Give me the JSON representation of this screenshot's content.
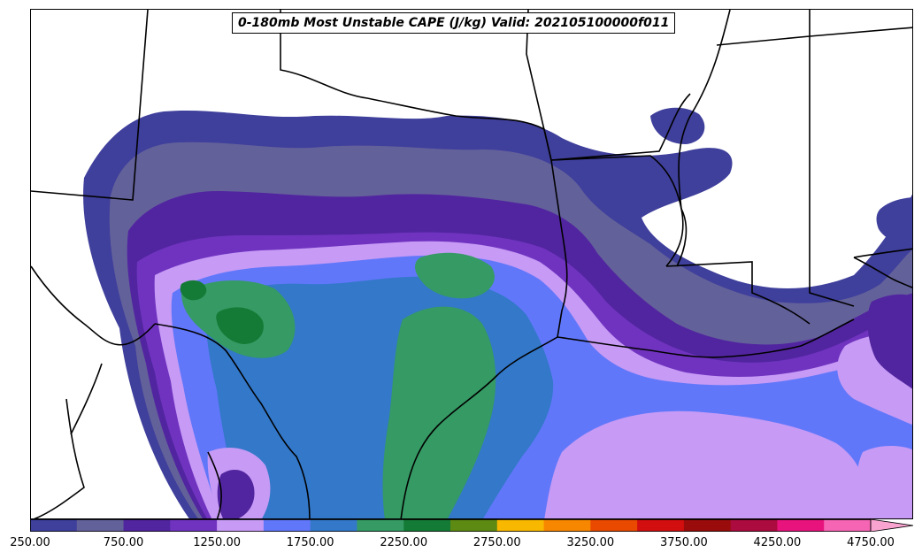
{
  "title": "0-180mb Most Unstable CAPE (J/kg) Valid: 202105100000f011",
  "colorbar": {
    "min": 250,
    "step": 250,
    "colors": [
      "#3f3f9c",
      "#63619a",
      "#5225a0",
      "#7033c0",
      "#c69af5",
      "#6177fa",
      "#3378c9",
      "#359a64",
      "#147b36",
      "#5d8a12",
      "#f8b800",
      "#f88700",
      "#ea4a00",
      "#d30e0e",
      "#9a0b0b",
      "#ab0b3e",
      "#e8137d",
      "#f565b3"
    ],
    "extend_color": "#f9a3d0",
    "tick_labels": [
      "250.00",
      "750.00",
      "1250.00",
      "1750.00",
      "2250.00",
      "2750.00",
      "3250.00",
      "3750.00",
      "4250.00",
      "4750.00"
    ]
  }
}
